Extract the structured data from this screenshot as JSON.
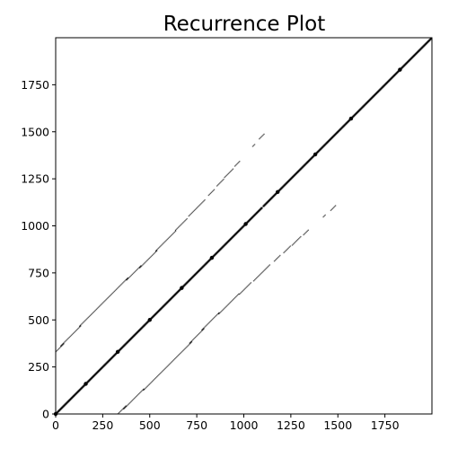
{
  "chart_data": {
    "type": "heatmap",
    "title": "Recurrence Plot",
    "xlabel": "",
    "ylabel": "",
    "xlim": [
      0,
      2000
    ],
    "ylim": [
      0,
      2000
    ],
    "x_ticks": [
      0,
      250,
      500,
      750,
      1000,
      1250,
      1500,
      1750
    ],
    "y_ticks": [
      0,
      250,
      500,
      750,
      1000,
      1250,
      1500,
      1750
    ],
    "grid": false,
    "legend": "none",
    "colormap": [
      "#ffffff",
      "#000000"
    ],
    "recurrence_source": {
      "description": "",
      "n_samples": 2000,
      "recurrence_times": [
        0,
        160,
        330,
        500,
        670,
        830,
        1010,
        1180,
        1380,
        1570,
        1830
      ],
      "cross_points": [
        [
          0,
          0
        ],
        [
          160,
          160
        ],
        [
          330,
          330
        ],
        [
          500,
          500
        ],
        [
          670,
          670
        ],
        [
          830,
          830
        ],
        [
          1010,
          1010
        ],
        [
          1180,
          1180
        ],
        [
          1380,
          1380
        ],
        [
          1570,
          1570
        ],
        [
          1830,
          1830
        ]
      ]
    }
  },
  "colors": {
    "ink": "#000000",
    "background": "#ffffff"
  }
}
